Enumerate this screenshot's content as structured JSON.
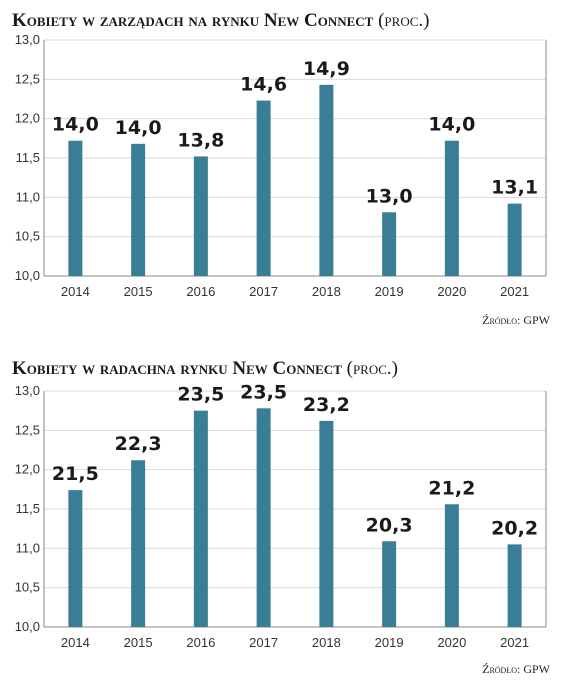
{
  "colors": {
    "bar": "#3a7d96",
    "grid": "#d9d9d9",
    "axis": "#888888"
  },
  "chart_data": [
    {
      "type": "bar",
      "title": "Kobiety w zarządach  na rynku New Connect",
      "title_unit": "(proc.)",
      "source": "Źródło: GPW",
      "categories": [
        "2014",
        "2015",
        "2016",
        "2017",
        "2018",
        "2019",
        "2020",
        "2021"
      ],
      "values": [
        14.0,
        14.0,
        13.8,
        14.6,
        14.9,
        13.0,
        14.0,
        13.1
      ],
      "value_labels": [
        "14,0",
        "14,0",
        "13,8",
        "14,6",
        "14,9",
        "13,0",
        "14,0",
        "13,1"
      ],
      "bar_heights_on_axis": [
        11.72,
        11.68,
        11.52,
        12.23,
        12.43,
        10.81,
        11.72,
        10.92
      ],
      "y_ticks": [
        "13,0",
        "12,5",
        "12,0",
        "11,5",
        "11,0",
        "10,5",
        "10,0"
      ],
      "ylim": [
        10.0,
        13.0
      ],
      "grid": true
    },
    {
      "type": "bar",
      "title": "Kobiety w radachna rynku New Connect",
      "title_unit": "(proc.)",
      "source": "Źródło: GPW",
      "categories": [
        "2014",
        "2015",
        "2016",
        "2017",
        "2018",
        "2019",
        "2020",
        "2021"
      ],
      "values": [
        21.5,
        22.3,
        23.5,
        23.5,
        23.2,
        20.3,
        21.2,
        20.2
      ],
      "value_labels": [
        "21,5",
        "22,3",
        "23,5",
        "23,5",
        "23,2",
        "20,3",
        "21,2",
        "20,2"
      ],
      "bar_heights_on_axis": [
        11.74,
        12.12,
        12.75,
        12.78,
        12.62,
        11.09,
        11.56,
        11.05
      ],
      "y_ticks": [
        "13,0",
        "12,5",
        "12,0",
        "11,5",
        "11,0",
        "10,5",
        "10,0"
      ],
      "ylim": [
        10.0,
        13.0
      ],
      "grid": true
    }
  ]
}
